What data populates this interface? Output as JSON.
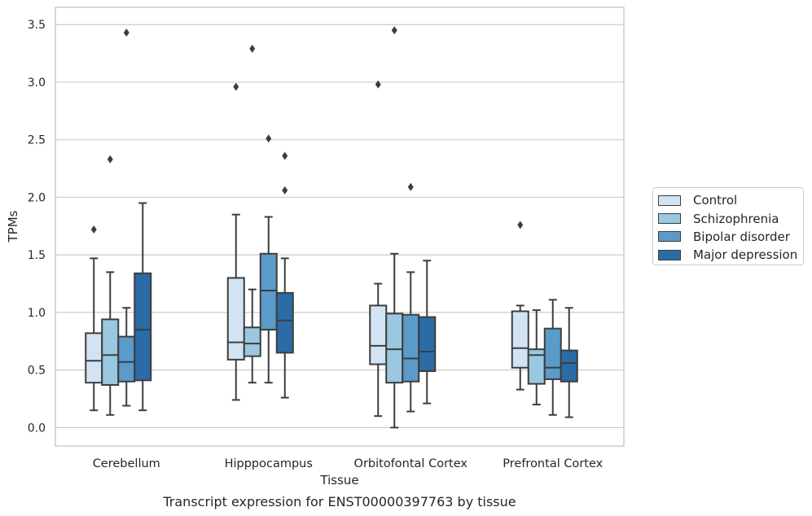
{
  "chart_data": {
    "type": "boxplot",
    "categories": [
      "Cerebellum",
      "Hipppocampus",
      "Orbitofontal Cortex",
      "Prefrontal Cortex"
    ],
    "xlabel": "Tissue",
    "ylabel": "TPMs",
    "ylim": [
      -0.16,
      3.65
    ],
    "yticks": [
      "0.0",
      "0.5",
      "1.0",
      "1.5",
      "2.0",
      "2.5",
      "3.0",
      "3.5"
    ],
    "grid": "horizontal",
    "legend_position": "outside-right",
    "series": [
      {
        "name": "Control",
        "color": "#d2e3f3",
        "boxes": [
          {
            "whislo": 0.15,
            "q1": 0.39,
            "med": 0.58,
            "q3": 0.82,
            "whishi": 1.47,
            "fliers": [
              1.72
            ]
          },
          {
            "whislo": 0.24,
            "q1": 0.59,
            "med": 0.74,
            "q3": 1.3,
            "whishi": 1.85,
            "fliers": [
              2.96
            ]
          },
          {
            "whislo": 0.1,
            "q1": 0.55,
            "med": 0.71,
            "q3": 1.06,
            "whishi": 1.25,
            "fliers": [
              2.98
            ]
          },
          {
            "whislo": 0.33,
            "q1": 0.52,
            "med": 0.69,
            "q3": 1.01,
            "whishi": 1.06,
            "fliers": [
              1.76
            ]
          }
        ]
      },
      {
        "name": "Schizophrenia",
        "color": "#9ac8e0",
        "boxes": [
          {
            "whislo": 0.11,
            "q1": 0.37,
            "med": 0.63,
            "q3": 0.94,
            "whishi": 1.35,
            "fliers": [
              2.33
            ]
          },
          {
            "whislo": 0.39,
            "q1": 0.62,
            "med": 0.73,
            "q3": 0.87,
            "whishi": 1.2,
            "fliers": [
              3.29
            ]
          },
          {
            "whislo": 0.0,
            "q1": 0.39,
            "med": 0.68,
            "q3": 0.99,
            "whishi": 1.51,
            "fliers": [
              3.45
            ]
          },
          {
            "whislo": 0.2,
            "q1": 0.38,
            "med": 0.63,
            "q3": 0.68,
            "whishi": 1.02,
            "fliers": []
          }
        ]
      },
      {
        "name": "Bipolar disorder",
        "color": "#5b9bc9",
        "boxes": [
          {
            "whislo": 0.19,
            "q1": 0.4,
            "med": 0.57,
            "q3": 0.79,
            "whishi": 1.04,
            "fliers": [
              3.43
            ]
          },
          {
            "whislo": 0.39,
            "q1": 0.85,
            "med": 1.19,
            "q3": 1.51,
            "whishi": 1.83,
            "fliers": [
              2.51
            ]
          },
          {
            "whislo": 0.14,
            "q1": 0.4,
            "med": 0.6,
            "q3": 0.98,
            "whishi": 1.35,
            "fliers": [
              2.09
            ]
          },
          {
            "whislo": 0.11,
            "q1": 0.42,
            "med": 0.52,
            "q3": 0.86,
            "whishi": 1.11,
            "fliers": []
          }
        ]
      },
      {
        "name": "Major depression",
        "color": "#2b6ba6",
        "boxes": [
          {
            "whislo": 0.15,
            "q1": 0.41,
            "med": 0.85,
            "q3": 1.34,
            "whishi": 1.95,
            "fliers": []
          },
          {
            "whislo": 0.26,
            "q1": 0.65,
            "med": 0.93,
            "q3": 1.17,
            "whishi": 1.47,
            "fliers": [
              2.36,
              2.06
            ]
          },
          {
            "whislo": 0.21,
            "q1": 0.49,
            "med": 0.66,
            "q3": 0.96,
            "whishi": 1.45,
            "fliers": []
          },
          {
            "whislo": 0.09,
            "q1": 0.4,
            "med": 0.56,
            "q3": 0.67,
            "whishi": 1.04,
            "fliers": []
          }
        ]
      }
    ],
    "caption": "Transcript expression for ENST00000397763 by tissue"
  }
}
